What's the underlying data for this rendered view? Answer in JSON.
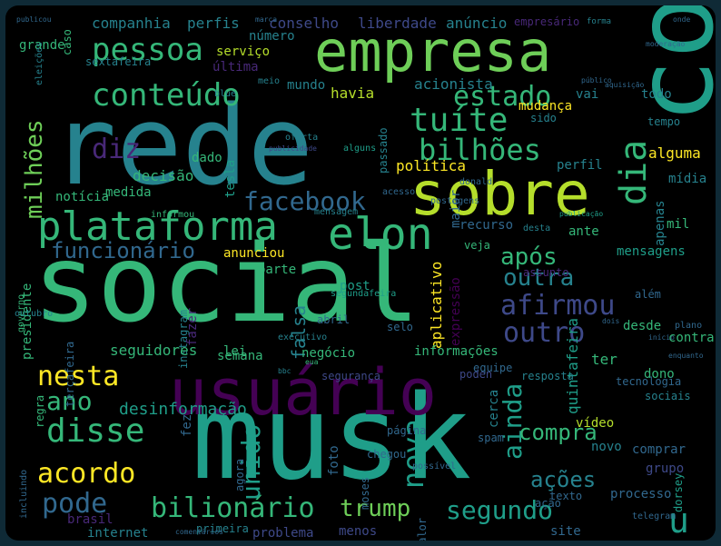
{
  "image": {
    "background": "#000000",
    "frame_color": "#0f2a36",
    "palette": [
      "#440154",
      "#482878",
      "#3e4989",
      "#31688e",
      "#26828e",
      "#1f9e89",
      "#35b779",
      "#6ece58",
      "#b5de2b",
      "#fde725"
    ]
  },
  "words": [
    {
      "text": "rede",
      "ci": 4
    },
    {
      "text": "social",
      "ci": 6
    },
    {
      "text": "musk",
      "ci": 5
    },
    {
      "text": "conta",
      "ci": 5
    },
    {
      "text": "empresa",
      "ci": 7
    },
    {
      "text": "usuário",
      "ci": 0
    },
    {
      "text": "sobre",
      "ci": 8
    },
    {
      "text": "plataforma",
      "ci": 6
    },
    {
      "text": "elon",
      "ci": 6
    },
    {
      "text": "pessoa",
      "ci": 6
    },
    {
      "text": "conteúdo",
      "ci": 6
    },
    {
      "text": "tuíte",
      "ci": 6
    },
    {
      "text": "estado",
      "ci": 6
    },
    {
      "text": "bilhões",
      "ci": 6
    },
    {
      "text": "dia",
      "ci": 6
    },
    {
      "text": "milhões",
      "ci": 7
    },
    {
      "text": "diz",
      "ci": 1
    },
    {
      "text": "facebook",
      "ci": 3
    },
    {
      "text": "funcionário",
      "ci": 3
    },
    {
      "text": "após",
      "ci": 6
    },
    {
      "text": "afirmou",
      "ci": 2
    },
    {
      "text": "outra",
      "ci": 4
    },
    {
      "text": "outro",
      "ci": 2
    },
    {
      "text": "nesta",
      "ci": 9
    },
    {
      "text": "ano",
      "ci": 6
    },
    {
      "text": "disse",
      "ci": 6
    },
    {
      "text": "acordo",
      "ci": 9
    },
    {
      "text": "pode",
      "ci": 3
    },
    {
      "text": "bilionário",
      "ci": 6
    },
    {
      "text": "trump",
      "ci": 7
    },
    {
      "text": "segundo",
      "ci": 5
    },
    {
      "text": "unido",
      "ci": 5
    },
    {
      "text": "nova",
      "ci": 5
    },
    {
      "text": "ainda",
      "ci": 5
    },
    {
      "text": "compra",
      "ci": 6
    },
    {
      "text": "ações",
      "ci": 4
    },
    {
      "text": "u",
      "ci": 5
    },
    {
      "text": "falsa",
      "ci": 4
    },
    {
      "text": "política",
      "ci": 9
    },
    {
      "text": "companhia",
      "ci": 4
    },
    {
      "text": "perfis",
      "ci": 4
    },
    {
      "text": "conselho",
      "ci": 2
    },
    {
      "text": "liberdade",
      "ci": 2
    },
    {
      "text": "anúncio",
      "ci": 4
    },
    {
      "text": "empresário",
      "ci": 1
    },
    {
      "text": "forma",
      "ci": 4
    },
    {
      "text": "onde",
      "ci": 3
    },
    {
      "text": "marca",
      "ci": 3
    },
    {
      "text": "publicou",
      "ci": 3
    },
    {
      "text": "grande",
      "ci": 6
    },
    {
      "text": "caso",
      "ci": 6
    },
    {
      "text": "sextafeira",
      "ci": 4
    },
    {
      "text": "serviço",
      "ci": 8
    },
    {
      "text": "número",
      "ci": 4
    },
    {
      "text": "última",
      "ci": 1
    },
    {
      "text": "eleições",
      "ci": 4
    },
    {
      "text": "mundo",
      "ci": 4
    },
    {
      "text": "havia",
      "ci": 8
    },
    {
      "text": "acionista",
      "ci": 4
    },
    {
      "text": "mudança",
      "ci": 9
    },
    {
      "text": "vai",
      "ci": 4
    },
    {
      "text": "todo",
      "ci": 4
    },
    {
      "text": "tempo",
      "ci": 4
    },
    {
      "text": "dado",
      "ci": 6
    },
    {
      "text": "decisão",
      "ci": 6
    },
    {
      "text": "medida",
      "ci": 6
    },
    {
      "text": "notícia",
      "ci": 6
    },
    {
      "text": "tesla",
      "ci": 5
    },
    {
      "text": "informou",
      "ci": 6
    },
    {
      "text": "perfil",
      "ci": 4
    },
    {
      "text": "alguma",
      "ci": 9
    },
    {
      "text": "mídia",
      "ci": 4
    },
    {
      "text": "mil",
      "ci": 6
    },
    {
      "text": "apenas",
      "ci": 4
    },
    {
      "text": "recurso",
      "ci": 3
    },
    {
      "text": "desta",
      "ci": 4
    },
    {
      "text": "ante",
      "ci": 6
    },
    {
      "text": "mensagens",
      "ci": 5
    },
    {
      "text": "mensagem",
      "ci": 4
    },
    {
      "text": "anunciou",
      "ci": 9
    },
    {
      "text": "parte",
      "ci": 6
    },
    {
      "text": "veja",
      "ci": 6
    },
    {
      "text": "post",
      "ci": 5
    },
    {
      "text": "aplicativo",
      "ci": 9
    },
    {
      "text": "expressão",
      "ci": 0
    },
    {
      "text": "além",
      "ci": 3
    },
    {
      "text": "presidente",
      "ci": 6
    },
    {
      "text": "instagram",
      "ci": 4
    },
    {
      "text": "fazer",
      "ci": 1
    },
    {
      "text": "seguidores",
      "ci": 6
    },
    {
      "text": "lei",
      "ci": 6
    },
    {
      "text": "negócio",
      "ci": 6
    },
    {
      "text": "informações",
      "ci": 6
    },
    {
      "text": "desde",
      "ci": 6
    },
    {
      "text": "contra",
      "ci": 6
    },
    {
      "text": "semana",
      "ci": 6
    },
    {
      "text": "governo",
      "ci": 6
    },
    {
      "text": "ter",
      "ci": 6
    },
    {
      "text": "equipe",
      "ci": 3
    },
    {
      "text": "dono",
      "ci": 6
    },
    {
      "text": "tecnologia",
      "ci": 3
    },
    {
      "text": "sociais",
      "ci": 4
    },
    {
      "text": "quintafeira",
      "ci": 5
    },
    {
      "text": "vídeo",
      "ci": 8
    },
    {
      "text": "desinformação",
      "ci": 5
    },
    {
      "text": "regra",
      "ci": 6
    },
    {
      "text": "cerca",
      "ci": 4
    },
    {
      "text": "novo",
      "ci": 4
    },
    {
      "text": "comprar",
      "ci": 3
    },
    {
      "text": "grupo",
      "ci": 2
    },
    {
      "text": "processo",
      "ci": 3
    },
    {
      "text": "brasil",
      "ci": 1
    },
    {
      "text": "internet",
      "ci": 4
    },
    {
      "text": "agora",
      "ci": 3
    },
    {
      "text": "menos",
      "ci": 2
    },
    {
      "text": "problema",
      "ci": 2
    },
    {
      "text": "site",
      "ci": 3
    },
    {
      "text": "dorsey",
      "ci": 5
    },
    {
      "text": "foto",
      "ci": 3
    },
    {
      "text": "spam",
      "ci": 3
    },
    {
      "text": "abril",
      "ci": 3
    },
    {
      "text": "assunto",
      "ci": 1
    },
    {
      "text": "possível",
      "ci": 3
    },
    {
      "text": "selo",
      "ci": 3
    },
    {
      "text": "resposta",
      "ci": 4
    },
    {
      "text": "terçafeira",
      "ci": 3
    },
    {
      "text": "fez",
      "ci": 3
    },
    {
      "text": "moses",
      "ci": 3
    },
    {
      "text": "página",
      "ci": 3
    },
    {
      "text": "chegou",
      "ci": 3
    },
    {
      "text": "valor",
      "ci": 3
    },
    {
      "text": "texto",
      "ci": 3
    },
    {
      "text": "ação",
      "ci": 3
    },
    {
      "text": "poden",
      "ci": 2
    },
    {
      "text": "segurança",
      "ci": 2
    },
    {
      "text": "eua",
      "ci": 6
    },
    {
      "text": "sido",
      "ci": 4
    },
    {
      "text": "blue",
      "ci": 4
    },
    {
      "text": "meio",
      "ci": 4
    },
    {
      "text": "oferta",
      "ci": 4
    },
    {
      "text": "executivo",
      "ci": 4
    },
    {
      "text": "segundafeira",
      "ci": 5
    },
    {
      "text": "alguns",
      "ci": 5
    },
    {
      "text": "passado",
      "ci": 4
    },
    {
      "text": "maior",
      "ci": 3
    },
    {
      "text": "postagens",
      "ci": 3
    },
    {
      "text": "publicação",
      "ci": 5
    },
    {
      "text": "publicidade",
      "ci": 2
    },
    {
      "text": "incluindo",
      "ci": 3
    },
    {
      "text": "primeira",
      "ci": 4
    },
    {
      "text": "bbc",
      "ci": 4
    },
    {
      "text": "outubro",
      "ci": 4
    },
    {
      "text": "plano",
      "ci": 3
    },
    {
      "text": "dois",
      "ci": 3
    },
    {
      "text": "início",
      "ci": 3
    },
    {
      "text": "enquanto",
      "ci": 3
    },
    {
      "text": "moderação",
      "ci": 3
    },
    {
      "text": "público",
      "ci": 3
    },
    {
      "text": "aquisição",
      "ci": 3
    },
    {
      "text": "telegram",
      "ci": 3
    },
    {
      "text": "donald",
      "ci": 3
    },
    {
      "text": "acesso",
      "ci": 3
    },
    {
      "text": "comentários",
      "ci": 3
    }
  ]
}
